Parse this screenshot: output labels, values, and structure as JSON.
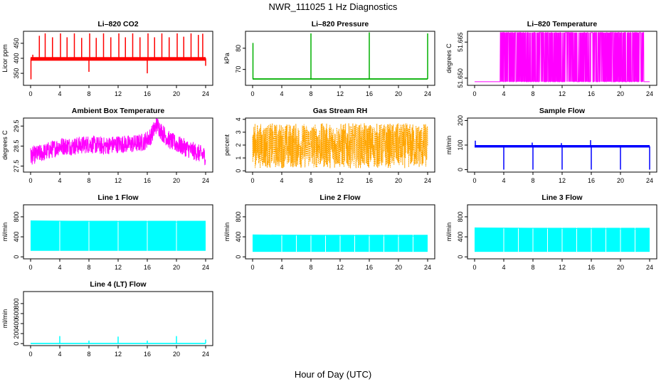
{
  "title": "NWR_111025  1 Hz Diagnostics",
  "xlabel": "Hour of Day (UTC)",
  "colors": {
    "red": "#ff0000",
    "green": "#00b000",
    "magenta": "#ff00ff",
    "orange": "#ffa500",
    "blue": "#0000ff",
    "cyan": "#00ffff"
  },
  "chart_data": [
    {
      "type": "line",
      "title": "Li–820 CO2",
      "ylabel": "Licor ppm",
      "color": "red",
      "xlim": [
        0,
        24
      ],
      "ylim": [
        310,
        490
      ],
      "xticks": [
        "0",
        "4",
        "8",
        "12",
        "16",
        "20",
        "24"
      ],
      "yticks": [
        {
          "v": 350,
          "t": "350"
        },
        {
          "v": 400,
          "t": "400"
        },
        {
          "v": 450,
          "t": "450"
        }
      ],
      "baseline": 400,
      "band": [
        392,
        404
      ],
      "spikes": [
        [
          0.05,
          330
        ],
        [
          0.3,
          412
        ],
        [
          1.2,
          475
        ],
        [
          2.0,
          483
        ],
        [
          3.0,
          470
        ],
        [
          4.1,
          483
        ],
        [
          5.0,
          470
        ],
        [
          6.0,
          483
        ],
        [
          7.0,
          468
        ],
        [
          8.0,
          355
        ],
        [
          8.1,
          483
        ],
        [
          9.0,
          468
        ],
        [
          10.0,
          483
        ],
        [
          11.0,
          470
        ],
        [
          12.1,
          483
        ],
        [
          13.0,
          470
        ],
        [
          14.0,
          483
        ],
        [
          15.0,
          470
        ],
        [
          16.0,
          350
        ],
        [
          16.1,
          483
        ],
        [
          17.0,
          470
        ],
        [
          18.0,
          483
        ],
        [
          19.0,
          470
        ],
        [
          20.1,
          483
        ],
        [
          21.0,
          472
        ],
        [
          22.0,
          483
        ],
        [
          23.0,
          478
        ],
        [
          23.6,
          482
        ],
        [
          24.0,
          375
        ]
      ]
    },
    {
      "type": "line",
      "title": "Li–820 Pressure",
      "ylabel": "kPa",
      "color": "green",
      "xlim": [
        0,
        24
      ],
      "ylim": [
        62.5,
        88
      ],
      "xticks": [
        "0",
        "4",
        "8",
        "12",
        "16",
        "20",
        "24"
      ],
      "yticks": [
        {
          "v": 70,
          "t": "70"
        },
        {
          "v": 80,
          "t": "80"
        }
      ],
      "baseline": 65.5,
      "band": [
        65.2,
        65.8
      ],
      "spikes": [
        [
          0.05,
          82.5
        ],
        [
          8.0,
          87
        ],
        [
          16.0,
          87.5
        ],
        [
          24.0,
          87
        ]
      ]
    },
    {
      "type": "line",
      "title": "Li–820 Temperature",
      "ylabel": "degrees C",
      "color": "magenta",
      "xlim": [
        0,
        24
      ],
      "ylim": [
        51.647,
        51.6695
      ],
      "xticks": [
        "0",
        "4",
        "8",
        "12",
        "16",
        "20",
        "24"
      ],
      "yticks": [
        {
          "v": 51.65,
          "t": "51.650"
        },
        {
          "v": 51.665,
          "t": "51.665"
        }
      ],
      "baseline": 51.6485,
      "top": 51.669
    },
    {
      "type": "line",
      "title": "Ambient Box Temperature",
      "ylabel": "degrees C",
      "color": "magenta",
      "xlim": [
        0,
        24
      ],
      "ylim": [
        27.2,
        29.9
      ],
      "xticks": [
        "0",
        "4",
        "8",
        "12",
        "16",
        "20",
        "24"
      ],
      "yticks": [
        {
          "v": 27.5,
          "t": "27.5"
        },
        {
          "v": 28.5,
          "t": "28.5"
        },
        {
          "v": 29.5,
          "t": "29.5"
        }
      ],
      "trend": [
        [
          0,
          28.0
        ],
        [
          2,
          28.2
        ],
        [
          4,
          28.5
        ],
        [
          6,
          28.5
        ],
        [
          8,
          28.6
        ],
        [
          10,
          28.5
        ],
        [
          12,
          28.6
        ],
        [
          14,
          28.6
        ],
        [
          15.5,
          28.7
        ],
        [
          16.5,
          29.0
        ],
        [
          17.3,
          29.6
        ],
        [
          18,
          29.2
        ],
        [
          19,
          28.8
        ],
        [
          20,
          28.6
        ],
        [
          22,
          28.3
        ],
        [
          24,
          28.0
        ]
      ],
      "noise": 0.45
    },
    {
      "type": "line",
      "title": "Gas Stream RH",
      "ylabel": "percent",
      "color": "orange",
      "xlim": [
        0,
        24
      ],
      "ylim": [
        -0.1,
        4.1
      ],
      "xticks": [
        "0",
        "4",
        "8",
        "12",
        "16",
        "20",
        "24"
      ],
      "yticks": [
        {
          "v": 0,
          "t": "0"
        },
        {
          "v": 1,
          "t": "1"
        },
        {
          "v": 2,
          "t": "2"
        },
        {
          "v": 3,
          "t": "3"
        },
        {
          "v": 4,
          "t": "4"
        }
      ],
      "band": [
        0.2,
        3.7
      ]
    },
    {
      "type": "line",
      "title": "Sample Flow",
      "ylabel": "ml/min",
      "color": "blue",
      "xlim": [
        0,
        24
      ],
      "ylim": [
        -10,
        210
      ],
      "xticks": [
        "0",
        "4",
        "8",
        "12",
        "16",
        "20",
        "24"
      ],
      "yticks": [
        {
          "v": 0,
          "t": "0"
        },
        {
          "v": 100,
          "t": "100"
        },
        {
          "v": 200,
          "t": "200"
        }
      ],
      "baseline": 95,
      "band": [
        90,
        100
      ],
      "spikes": [
        [
          0.1,
          118
        ],
        [
          4.0,
          0
        ],
        [
          8.0,
          0
        ],
        [
          7.9,
          110
        ],
        [
          12.0,
          0
        ],
        [
          11.9,
          108
        ],
        [
          16.0,
          0
        ],
        [
          15.9,
          120
        ],
        [
          20.0,
          0
        ],
        [
          24.0,
          0
        ]
      ]
    },
    {
      "type": "area",
      "title": "Line 1 Flow",
      "ylabel": "ml/min",
      "color": "cyan",
      "xlim": [
        0,
        24
      ],
      "ylim": [
        -40,
        1040
      ],
      "xticks": [
        "0",
        "4",
        "8",
        "12",
        "16",
        "20",
        "24"
      ],
      "yticks": [
        {
          "v": 0,
          "t": "0"
        },
        {
          "v": 400,
          "t": "400"
        },
        {
          "v": 800,
          "t": "800"
        }
      ],
      "band": [
        120,
        720
      ]
    },
    {
      "type": "area",
      "title": "Line 2 Flow",
      "ylabel": "ml/min",
      "color": "cyan",
      "xlim": [
        0,
        24
      ],
      "ylim": [
        -40,
        1040
      ],
      "xticks": [
        "0",
        "4",
        "8",
        "12",
        "16",
        "20",
        "24"
      ],
      "yticks": [
        {
          "v": 0,
          "t": "0"
        },
        {
          "v": 400,
          "t": "400"
        },
        {
          "v": 800,
          "t": "800"
        }
      ],
      "band": [
        100,
        440
      ]
    },
    {
      "type": "area",
      "title": "Line 3 Flow",
      "ylabel": "ml/min",
      "color": "cyan",
      "xlim": [
        0,
        24
      ],
      "ylim": [
        -40,
        1040
      ],
      "xticks": [
        "0",
        "4",
        "8",
        "12",
        "16",
        "20",
        "24"
      ],
      "yticks": [
        {
          "v": 0,
          "t": "0"
        },
        {
          "v": 400,
          "t": "400"
        },
        {
          "v": 800,
          "t": "800"
        }
      ],
      "band": [
        100,
        580
      ]
    },
    {
      "type": "line",
      "title": "Line 4 (LT) Flow",
      "ylabel": "ml/min",
      "color": "cyan",
      "xlim": [
        0,
        24
      ],
      "ylim": [
        -40,
        1040
      ],
      "xticks": [
        "0",
        "4",
        "8",
        "12",
        "16",
        "20",
        "24"
      ],
      "yticks": [
        {
          "v": 0,
          "t": "0"
        },
        {
          "v": 200,
          "t": "200"
        },
        {
          "v": 400,
          "t": "400"
        },
        {
          "v": 600,
          "t": "600"
        },
        {
          "v": 800,
          "t": "800"
        }
      ],
      "baseline": 5,
      "band": [
        0,
        12
      ],
      "spikes": [
        [
          4.0,
          150
        ],
        [
          8.0,
          60
        ],
        [
          12.0,
          140
        ],
        [
          16.0,
          60
        ],
        [
          20.0,
          150
        ],
        [
          24.0,
          80
        ]
      ]
    }
  ]
}
